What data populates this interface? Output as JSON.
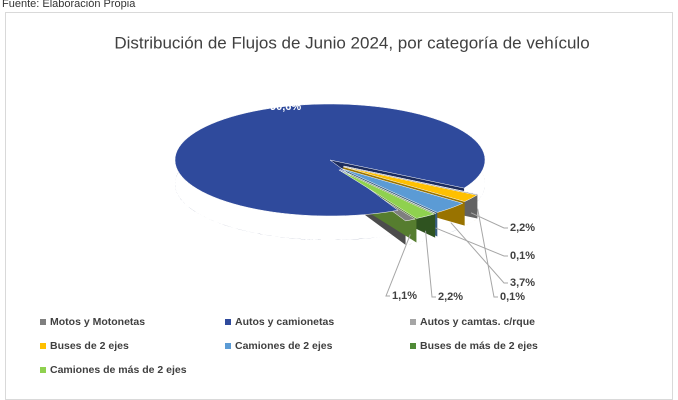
{
  "source": "Fuente: Elaboración Propia",
  "chart_data": {
    "type": "pie3d",
    "title": "Distribución de Flujos de Junio 2024, por categoría de vehículo",
    "categories": [
      "Motos y Motonetas",
      "Autos y camionetas",
      "Autos y camtas. c/rque",
      "Buses de 2 ejes",
      "Camiones de 2 ejes",
      "Buses de más de 2 ejes",
      "Camiones de más de 2 ejes"
    ],
    "values": [
      1.1,
      90.6,
      0.1,
      2.2,
      3.7,
      0.1,
      2.2
    ],
    "value_labels": [
      "1,1%",
      "90,6%",
      "0,1%",
      "2,2%",
      "3,7%",
      "0,1%",
      "2,2%"
    ],
    "colors": [
      "#7f7f7f",
      "#2f4a9c",
      "#a5a5a5",
      "#ffc000",
      "#5b9bd5",
      "#4f8a36",
      "#8fd14f"
    ],
    "legend": "bottom"
  }
}
